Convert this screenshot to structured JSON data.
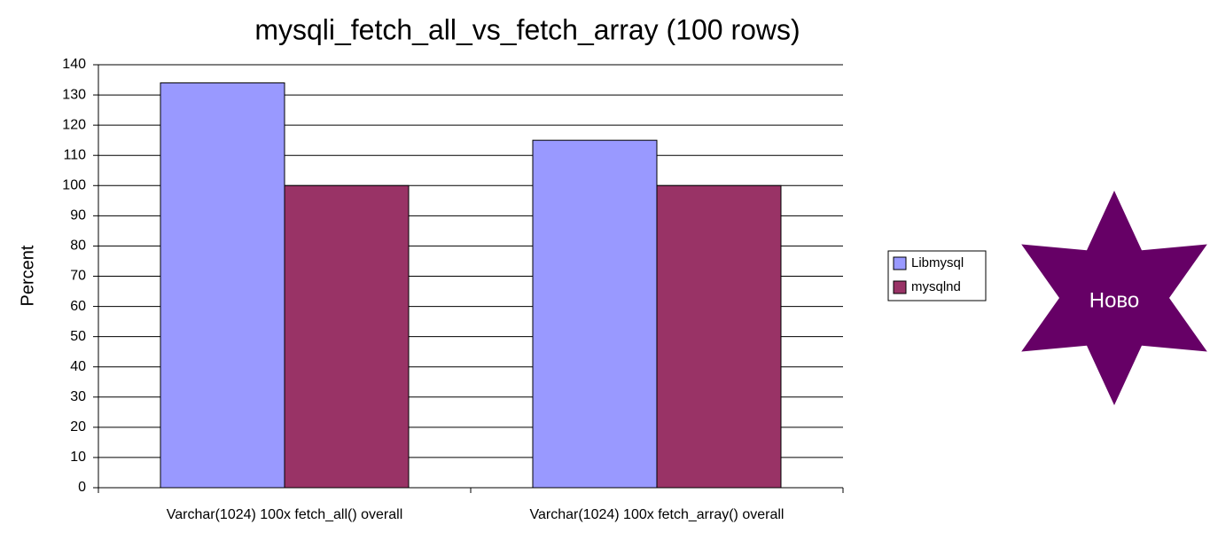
{
  "chart_data": {
    "type": "bar",
    "title": "mysqli_fetch_all_vs_fetch_array (100 rows)",
    "ylabel": "Percent",
    "categories": [
      "Varchar(1024) 100x fetch_all() overall",
      "Varchar(1024) 100x fetch_array() overall"
    ],
    "series": [
      {
        "name": "Libmysql",
        "color": "#9999ff",
        "values": [
          134,
          115
        ]
      },
      {
        "name": "mysqlnd",
        "color": "#993366",
        "values": [
          100,
          100
        ]
      }
    ],
    "ylim": [
      0,
      140
    ],
    "yticks": [
      0,
      10,
      20,
      30,
      40,
      50,
      60,
      70,
      80,
      90,
      100,
      110,
      120,
      130,
      140
    ],
    "grid": true,
    "legend": "right"
  },
  "badge": {
    "label": "Ново",
    "color": "#660066"
  }
}
